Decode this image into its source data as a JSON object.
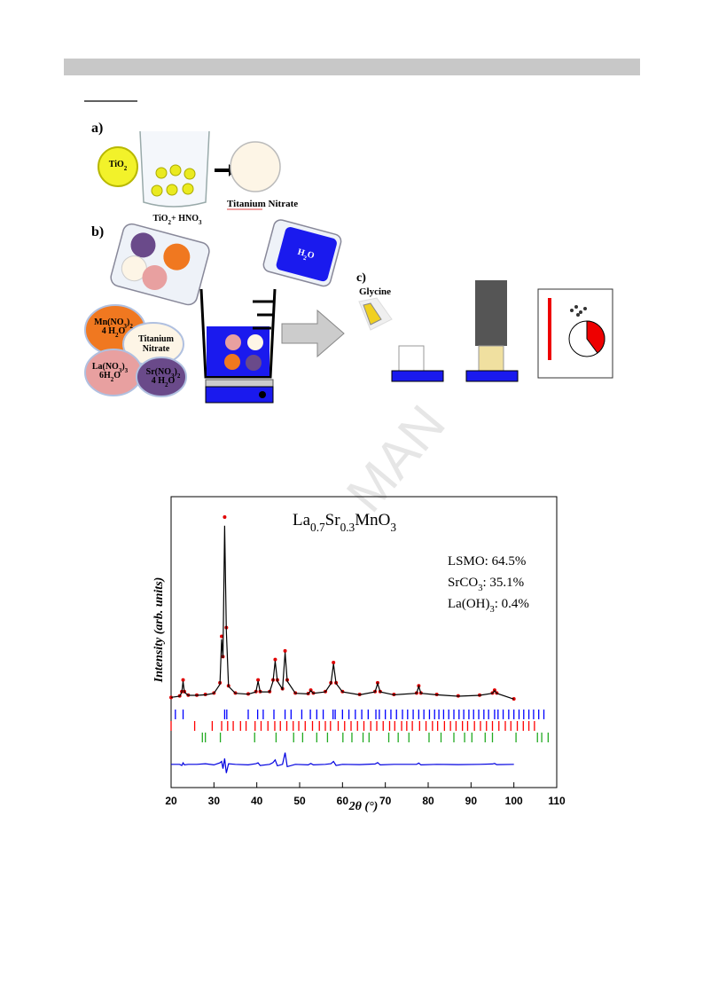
{
  "watermark": "MAN",
  "scheme": {
    "a": "a)",
    "b": "b)",
    "c": "c)",
    "tio2": [
      "TiO",
      "2"
    ],
    "tio2_hno3": [
      "TiO",
      "2",
      "+ HNO",
      "3"
    ],
    "titanium_nitrate": "Titanium Nitrate",
    "h2o": [
      "H",
      "2",
      "O"
    ],
    "glycine": "Glycine",
    "mn_nitrate": [
      [
        "Mn(NO",
        "3",
        ")",
        "2"
      ],
      [
        "4 H",
        "2",
        "O"
      ]
    ],
    "ti_nitrate_salt": [
      [
        "Titanium"
      ],
      [
        "Nitrate"
      ]
    ],
    "la_nitrate": [
      [
        "La(NO",
        "3",
        ")",
        "3"
      ],
      [
        "6H",
        "2",
        "O"
      ]
    ],
    "sr_nitrate": [
      [
        "Sr(NO",
        "3",
        ")",
        "2"
      ],
      [
        "4 H",
        "2",
        "O"
      ]
    ]
  },
  "chart_data": {
    "type": "line",
    "title": [
      "La",
      "0.7",
      "Sr",
      "0.3",
      "MnO",
      "3"
    ],
    "annotations": [
      "LSMO: 64.5%",
      [
        "SrCO",
        "3",
        ": 35.1%"
      ],
      [
        "La(OH)",
        "3",
        ": 0.4%"
      ]
    ],
    "x_label": "2θ (°)",
    "y_label": "Intensity (arb. units)",
    "xlim": [
      20,
      110
    ],
    "xticks": [
      20,
      30,
      40,
      50,
      60,
      70,
      80,
      90,
      100,
      110
    ],
    "ylim": [
      0,
      100
    ],
    "x": [
      20,
      22,
      22.5,
      22.8,
      23.1,
      24,
      26,
      28,
      30,
      31.4,
      31.8,
      32.1,
      32.5,
      32.9,
      33.4,
      35,
      38,
      39.8,
      40.3,
      40.8,
      43,
      43.8,
      44.3,
      44.8,
      46,
      46.6,
      47.1,
      49,
      52,
      52.6,
      53.2,
      56,
      57.3,
      57.9,
      58.5,
      60,
      64,
      67.6,
      68.2,
      68.8,
      72,
      77.3,
      77.8,
      78.3,
      82,
      87,
      92,
      95,
      95.5,
      96,
      100
    ],
    "series": [
      {
        "color": "#e00000",
        "style": "points",
        "values": [
          31,
          31.5,
          33,
          37,
          33,
          31.8,
          31.8,
          32,
          32.5,
          36,
          52,
          45,
          93,
          55,
          35,
          32.5,
          32.2,
          33,
          37,
          33,
          33,
          37,
          44,
          37,
          34,
          47,
          37,
          32.5,
          32.3,
          33.5,
          32.5,
          33,
          36,
          43,
          36,
          33,
          32,
          33,
          36,
          33,
          32,
          32.5,
          35,
          32.5,
          32,
          31.5,
          31.8,
          32.5,
          33.5,
          32.5,
          30.5
        ]
      },
      {
        "color": "#000000",
        "style": "line",
        "values": [
          31,
          31.4,
          32.8,
          36.5,
          32.8,
          31.7,
          31.7,
          31.9,
          32.4,
          35.5,
          51,
          44.5,
          90,
          54,
          34.8,
          32.4,
          32.1,
          32.9,
          36.6,
          32.9,
          32.9,
          36.6,
          43.5,
          36.6,
          33.8,
          46.5,
          36.6,
          32.4,
          32.2,
          33.3,
          32.4,
          32.9,
          35.8,
          42.5,
          35.8,
          32.9,
          31.9,
          32.9,
          35.8,
          32.9,
          31.9,
          32.4,
          34.8,
          32.4,
          31.9,
          31.4,
          31.7,
          32.4,
          33.3,
          32.4,
          30.4
        ]
      },
      {
        "color": "#0000e0",
        "style": "line",
        "values": [
          8,
          8,
          7.6,
          8.5,
          7.8,
          8,
          8,
          8.2,
          7.8,
          8.5,
          9,
          6.5,
          10,
          5,
          8.2,
          8,
          7.8,
          8.2,
          8.5,
          7.6,
          8,
          8.6,
          9.5,
          7.5,
          8,
          12,
          7.2,
          8,
          7.8,
          8.3,
          7.8,
          8,
          8.2,
          9,
          7.6,
          8,
          7.9,
          8.1,
          8.6,
          7.8,
          8,
          8,
          8.4,
          7.8,
          8,
          7.9,
          8,
          8.1,
          8.3,
          7.9,
          8
        ]
      }
    ],
    "reflections": [
      {
        "color": "#0000ff",
        "x": [
          21.0,
          22.8,
          32.5,
          33.0,
          38.0,
          40.2,
          41.5,
          44.0,
          46.6,
          48.0,
          50.5,
          52.5,
          54.0,
          55.5,
          57.8,
          58.3,
          60.0,
          61.5,
          63.0,
          64.5,
          66.0,
          67.8,
          68.6,
          70.0,
          71.3,
          72.6,
          74.0,
          75.2,
          76.5,
          77.8,
          79.0,
          80.3,
          81.5,
          82.5,
          83.6,
          84.8,
          86.0,
          87.2,
          88.3,
          89.5,
          90.6,
          91.8,
          93.0,
          94.1,
          95.5,
          96.3,
          97.5,
          98.8,
          100.0,
          101.2,
          102.3,
          103.5,
          104.6,
          105.8,
          107.0
        ]
      },
      {
        "color": "#ff0000",
        "x": [
          20.0,
          25.5,
          29.6,
          31.8,
          33.2,
          34.5,
          36.2,
          37.5,
          39.6,
          41.0,
          42.6,
          44.2,
          45.5,
          47.0,
          48.5,
          49.8,
          51.3,
          53.0,
          54.6,
          56.0,
          57.2,
          59.0,
          60.5,
          62.0,
          63.5,
          65.0,
          66.6,
          68.0,
          69.5,
          71.0,
          72.2,
          73.8,
          75.0,
          76.3,
          78.0,
          79.5,
          81.0,
          82.2,
          83.8,
          85.2,
          86.5,
          88.0,
          89.2,
          90.8,
          92.2,
          93.6,
          95.0,
          96.5,
          98.0,
          99.3,
          100.8,
          102.2,
          103.5,
          104.8
        ]
      },
      {
        "color": "#22aa22",
        "x": [
          27.3,
          28.0,
          31.5,
          39.5,
          44.5,
          48.6,
          50.7,
          54.0,
          56.5,
          60.1,
          62.2,
          64.8,
          66.2,
          70.8,
          73.0,
          75.5,
          80.2,
          83.0,
          86.0,
          88.5,
          90.2,
          93.3,
          95.0,
          100.5,
          105.5,
          106.5,
          108.0
        ]
      }
    ]
  }
}
